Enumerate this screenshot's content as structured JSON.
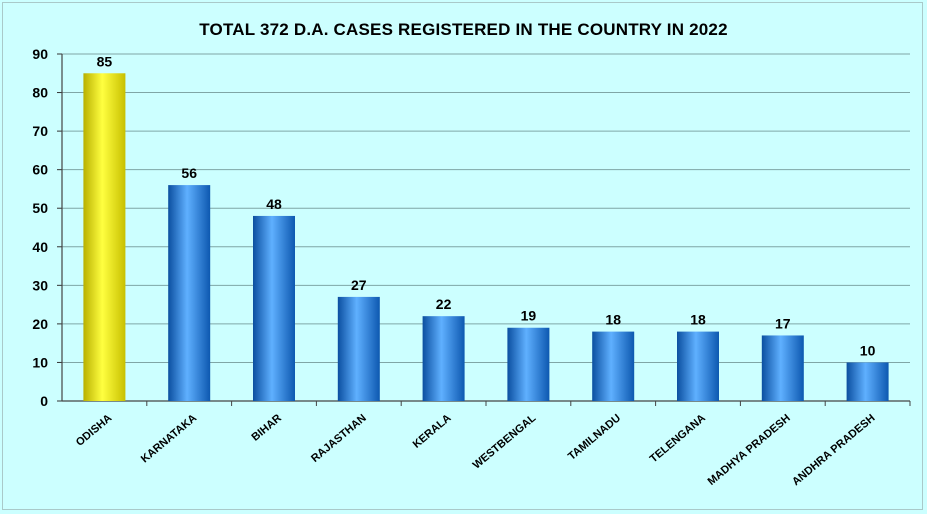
{
  "chart_data": {
    "type": "bar",
    "title": "TOTAL 372 D.A. CASES  REGISTERED IN  THE COUNTRY IN 2022",
    "xlabel": "",
    "ylabel": "",
    "categories": [
      "ODISHA",
      "KARNATAKA",
      "BIHAR",
      "RAJASTHAN",
      "KERALA",
      "WESTBENGAL",
      "TAMILNADU",
      "TELENGANA",
      "MADHYA PRADESH",
      "ANDHRA PRADESH"
    ],
    "values": [
      85,
      56,
      48,
      27,
      22,
      19,
      18,
      18,
      17,
      10
    ],
    "ylim": [
      0,
      90
    ],
    "yticks": [
      0,
      10,
      20,
      30,
      40,
      50,
      60,
      70,
      80,
      90
    ],
    "grid": true,
    "legend": "none",
    "colors": {
      "highlight": "#ffff00",
      "bar": "#3a8fe0",
      "background": "#ccffff",
      "grid": "#7fa6a6"
    }
  }
}
